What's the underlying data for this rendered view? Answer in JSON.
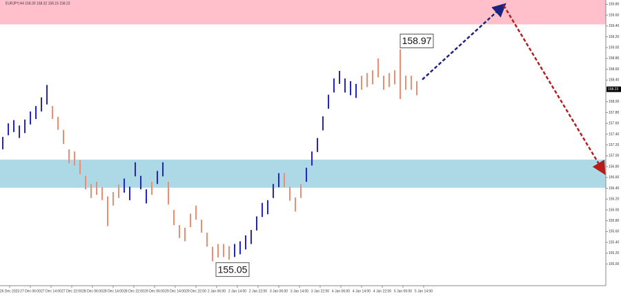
{
  "chart_data": {
    "type": "ohlc",
    "title": "EURJPY,H4  158.30 158.32 158.15 158.23",
    "ylim": [
      154.6,
      159.88
    ],
    "yticks": [
      {
        "value": 155.0,
        "label": "155.00"
      },
      {
        "value": 155.2,
        "label": "155.20"
      },
      {
        "value": 155.4,
        "label": "155.40"
      },
      {
        "value": 155.6,
        "label": "155.60"
      },
      {
        "value": 155.8,
        "label": "155.80"
      },
      {
        "value": 156.0,
        "label": "156.00"
      },
      {
        "value": 156.2,
        "label": "156.20"
      },
      {
        "value": 156.4,
        "label": "156.40"
      },
      {
        "value": 156.6,
        "label": "156.60"
      },
      {
        "value": 156.8,
        "label": "156.80"
      },
      {
        "value": 157.0,
        "label": "157.00"
      },
      {
        "value": 157.2,
        "label": "157.20"
      },
      {
        "value": 157.4,
        "label": "157.40"
      },
      {
        "value": 157.6,
        "label": "157.60"
      },
      {
        "value": 157.8,
        "label": "157.80"
      },
      {
        "value": 158.0,
        "label": "158.00"
      },
      {
        "value": 158.2,
        "label": "158.20"
      },
      {
        "value": 158.4,
        "label": "158.40"
      },
      {
        "value": 158.6,
        "label": "158.60"
      },
      {
        "value": 158.8,
        "label": "158.80"
      },
      {
        "value": 159.0,
        "label": "159.00"
      },
      {
        "value": 159.2,
        "label": "159.20"
      },
      {
        "value": 159.4,
        "label": "159.40"
      },
      {
        "value": 159.6,
        "label": "159.60"
      },
      {
        "value": 159.8,
        "label": "159.80"
      }
    ],
    "categories": [
      "26 Dec 2023",
      "27 Dec 06:00",
      "27 Dec 14:00",
      "27 Dec 22:00",
      "28 Dec 06:00",
      "28 Dec 14:00",
      "28 Dec 22:00",
      "29 Dec 06:00",
      "29 Dec 14:00",
      "29 Dec 22:00",
      "2 Jan 06:00",
      "2 Jan 14:00",
      "2 Jan 22:00",
      "3 Jan 06:00",
      "3 Jan 14:00",
      "3 Jan 22:00",
      "4 Jan 06:00",
      "4 Jan 14:00",
      "4 Jan 22:00",
      "5 Jan 06:00",
      "5 Jan 14:00"
    ],
    "series": [
      {
        "color": "#2020dd",
        "high": [
          157.35,
          157.6,
          157.66,
          157.56,
          157.67,
          157.82,
          157.92,
          158.08,
          158.31,
          null,
          null,
          null,
          null,
          null,
          null,
          null,
          null,
          null,
          null,
          null,
          null,
          null,
          156.58,
          156.43,
          156.88,
          156.63,
          156.38,
          null,
          156.72,
          156.88,
          null,
          null,
          null,
          null,
          null,
          null,
          null,
          null,
          null,
          null,
          null,
          null,
          155.37,
          155.42,
          155.53,
          155.63,
          155.88,
          156.13,
          156.18,
          156.48,
          156.68,
          null,
          null,
          null,
          null,
          156.78,
          157.08,
          157.33,
          157.73,
          158.13,
          158.43,
          158.57,
          158.43,
          158.38,
          158.33,
          null,
          null,
          null,
          null,
          null,
          null,
          null,
          null,
          null,
          null,
          null
        ],
        "low": [
          157.12,
          157.38,
          157.44,
          157.33,
          157.42,
          157.58,
          157.68,
          157.82,
          157.95,
          null,
          null,
          null,
          null,
          null,
          null,
          null,
          null,
          null,
          null,
          null,
          null,
          null,
          156.32,
          156.18,
          156.62,
          156.38,
          156.12,
          null,
          156.48,
          156.62,
          null,
          null,
          null,
          null,
          null,
          null,
          null,
          null,
          null,
          null,
          null,
          null,
          155.13,
          155.18,
          155.27,
          155.37,
          155.62,
          155.87,
          155.92,
          156.22,
          156.42,
          null,
          null,
          null,
          null,
          156.52,
          156.82,
          157.07,
          157.47,
          157.87,
          158.17,
          158.33,
          158.17,
          158.12,
          158.07,
          null,
          null,
          null,
          null,
          null,
          null,
          null,
          null,
          null,
          null,
          null
        ]
      },
      {
        "color": "#f08c70",
        "high": [
          null,
          null,
          null,
          null,
          null,
          null,
          null,
          null,
          null,
          157.92,
          157.72,
          157.48,
          157.12,
          157.08,
          156.92,
          156.63,
          156.48,
          156.52,
          156.42,
          156.25,
          156.33,
          156.47,
          null,
          null,
          null,
          null,
          null,
          156.52,
          null,
          null,
          156.52,
          156.0,
          155.72,
          155.67,
          155.93,
          156.08,
          155.82,
          155.58,
          155.32,
          155.37,
          155.37,
          155.33,
          null,
          null,
          null,
          null,
          null,
          null,
          null,
          null,
          null,
          156.68,
          156.43,
          156.23,
          156.48,
          null,
          null,
          null,
          null,
          null,
          null,
          null,
          null,
          null,
          null,
          158.48,
          158.53,
          158.58,
          158.8,
          158.48,
          158.53,
          158.58,
          158.97,
          158.48,
          158.48,
          158.38
        ],
        "low": [
          null,
          null,
          null,
          null,
          null,
          null,
          null,
          null,
          null,
          157.68,
          157.48,
          157.22,
          156.86,
          156.82,
          156.66,
          156.38,
          156.22,
          156.28,
          156.18,
          155.7,
          156.08,
          156.22,
          null,
          null,
          null,
          null,
          null,
          156.28,
          null,
          null,
          156.1,
          155.72,
          155.48,
          155.42,
          155.68,
          155.82,
          155.58,
          155.32,
          155.05,
          155.12,
          155.13,
          155.08,
          null,
          null,
          null,
          null,
          null,
          null,
          null,
          null,
          null,
          156.42,
          156.17,
          155.97,
          156.22,
          null,
          null,
          null,
          null,
          null,
          null,
          null,
          null,
          null,
          null,
          158.22,
          158.27,
          158.32,
          158.45,
          158.22,
          158.27,
          158.32,
          158.05,
          158.22,
          158.22,
          158.12
        ]
      }
    ],
    "zones": [
      {
        "from": 159.43,
        "to": 159.88,
        "color": "#ffc0cb"
      },
      {
        "from": 156.41,
        "to": 156.93,
        "color": "#add8e6"
      }
    ],
    "arrows": [
      {
        "from": 158.41,
        "to": 159.78,
        "color": "#1a237e"
      },
      {
        "from": 159.78,
        "to": 156.7,
        "color": "#b71c1c"
      }
    ],
    "annotations": [
      158.97,
      155.05
    ],
    "last_price": {
      "value": 158.23,
      "label": "158.23"
    }
  }
}
